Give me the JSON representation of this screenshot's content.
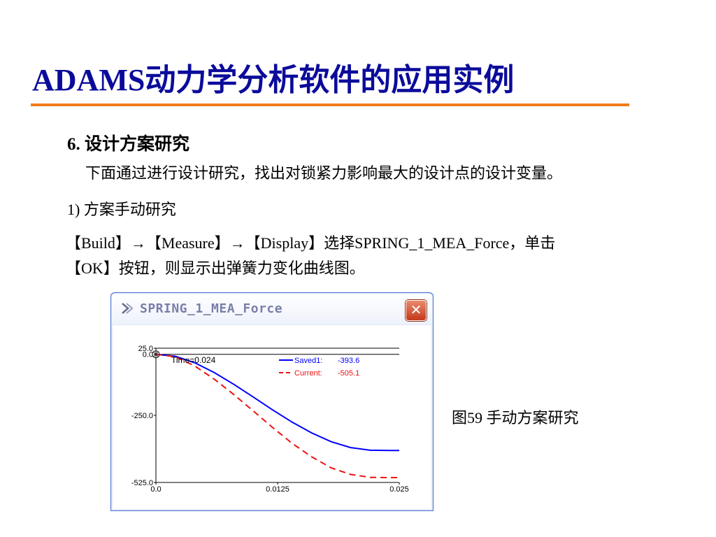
{
  "slide": {
    "title": "ADAMS动力学分析软件的应用实例",
    "section_heading": "6. 设计方案研究",
    "intro": "下面通过进行设计研究，找出对锁紧力影响最大的设计点的设计变量。",
    "step": "1) 方案手动研究",
    "instruction_line1": "【Build】→【Measure】→【Display】选择SPRING_1_MEA_Force，单击",
    "instruction_line2": "【OK】按钮，则显示出弹簧力变化曲线图。",
    "figure_caption": "图59 手动方案研究",
    "accent_color": "#ef7d1a",
    "title_color": "#0b0b9b"
  },
  "window": {
    "title": "SPRING_1_MEA_Force",
    "close_symbol": "✕",
    "icon": "measure-icon"
  },
  "chart_data": {
    "type": "line",
    "xlim": [
      0.0,
      0.025
    ],
    "ylim": [
      -525.0,
      25.0
    ],
    "x_ticks": [
      0.0,
      0.0125,
      0.025
    ],
    "x_tick_labels": [
      "0.0",
      "0.0125",
      "0.025"
    ],
    "y_ticks": [
      25.0,
      0.0,
      -250.0,
      -525.0
    ],
    "y_tick_labels": [
      "25.0",
      "0.0",
      "-250.0",
      "-525.0"
    ],
    "cursor_label": "Time=",
    "cursor_value": "0.024",
    "legend_position": "top-right",
    "series": [
      {
        "name": "Saved1:",
        "readout": "-393.6",
        "color": "#0000ff",
        "dash": "solid",
        "x": [
          0,
          0.002,
          0.004,
          0.006,
          0.008,
          0.01,
          0.012,
          0.014,
          0.016,
          0.018,
          0.02,
          0.022,
          0.024,
          0.025
        ],
        "y": [
          0,
          -8,
          -35,
          -75,
          -123,
          -175,
          -228,
          -278,
          -322,
          -358,
          -382,
          -393,
          -394,
          -394
        ]
      },
      {
        "name": "Current:",
        "readout": "-505.1",
        "color": "#ee1111",
        "dash": "dashed",
        "x": [
          0,
          0.002,
          0.004,
          0.006,
          0.008,
          0.01,
          0.012,
          0.014,
          0.016,
          0.018,
          0.02,
          0.022,
          0.024,
          0.025
        ],
        "y": [
          0,
          -10,
          -48,
          -102,
          -165,
          -232,
          -300,
          -365,
          -420,
          -465,
          -492,
          -504,
          -505,
          -505
        ]
      }
    ]
  }
}
